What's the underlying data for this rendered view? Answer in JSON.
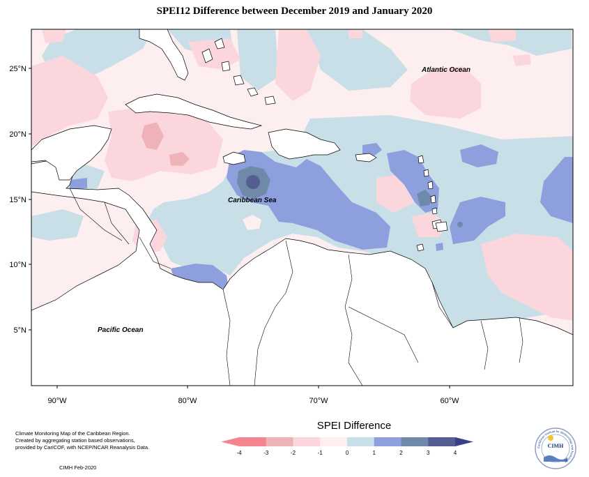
{
  "title": "SPEI12 Difference between December 2019 and January 2020",
  "ocean_labels": {
    "atlantic": "Atlantic Ocean",
    "caribbean": "Caribbean Sea",
    "pacific": "Pacific Ocean"
  },
  "lat_ticks": [
    "25°N",
    "20°N",
    "15°N",
    "10°N",
    "5°N"
  ],
  "lon_ticks": [
    "90°W",
    "80°W",
    "70°W",
    "60°W"
  ],
  "legend": {
    "title": "SPEI Difference",
    "labels": [
      "-4",
      "-3",
      "-2",
      "-1",
      "0",
      "1",
      "2",
      "3",
      "4"
    ],
    "colors": [
      "#f4858f",
      "#eeb2b8",
      "#fbd6dd",
      "#fdeef0",
      "#c9dfe7",
      "#8d9fdd",
      "#6f8aa8",
      "#545e93",
      "#3c3f85"
    ]
  },
  "credit": {
    "line1": "Climate Monitoring Map of the Caribbean Region.",
    "line2": "Created by aggregating station based observations,",
    "line3": "provided by CariCOF, with NCEP/NCAR Reanalysis Data.",
    "date": "CIMH Feb-2020"
  },
  "logo": {
    "name": "CIMH",
    "arc_text": "Caribbean Institute for Meteorology and Hydrology"
  }
}
